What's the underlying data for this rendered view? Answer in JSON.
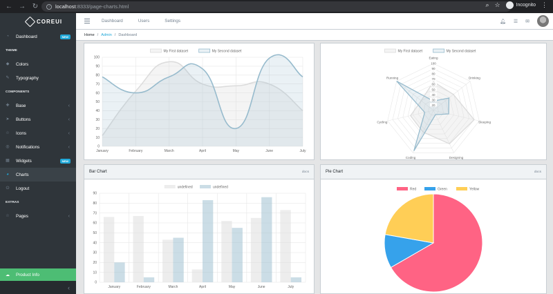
{
  "browser": {
    "url_host": "localhost",
    "url_path": ":8333/page-charts.html",
    "incognito_label": "Incognito"
  },
  "brand": {
    "name": "COREUI"
  },
  "sidebar": {
    "items": [
      {
        "label": "Dashboard",
        "icon": "speedometer-icon",
        "badge": "NEW"
      },
      {
        "section": "THEME"
      },
      {
        "label": "Colors",
        "icon": "drop-icon"
      },
      {
        "label": "Typography",
        "icon": "pencil-icon"
      },
      {
        "section": "COMPONENTS"
      },
      {
        "label": "Base",
        "icon": "puzzle-icon",
        "chevron": true
      },
      {
        "label": "Buttons",
        "icon": "cursor-icon",
        "chevron": true
      },
      {
        "label": "Icons",
        "icon": "star-icon",
        "chevron": true
      },
      {
        "label": "Notifications",
        "icon": "bell-icon",
        "chevron": true
      },
      {
        "label": "Widgets",
        "icon": "calculator-icon",
        "badge": "NEW"
      },
      {
        "label": "Charts",
        "icon": "pie-chart-icon",
        "active": true
      },
      {
        "label": "Logout",
        "icon": "logout-icon"
      },
      {
        "section": "EXTRAS"
      },
      {
        "label": "Pages",
        "icon": "star-icon",
        "chevron": true
      }
    ],
    "footer_label": "Product Info"
  },
  "header": {
    "links": [
      "Dashboard",
      "Users",
      "Settings"
    ]
  },
  "breadcrumb": {
    "home": "Home",
    "admin": "Admin",
    "current": "Dashboard"
  },
  "colors": {
    "grey_fill": "rgba(220,220,220,0.3)",
    "grey_line": "#dcdcdc",
    "blue_fill": "rgba(151,187,205,0.2)",
    "blue_line": "#97bbcd",
    "red": "#ff6384",
    "green": "#36a2eb",
    "yellow": "#ffce56",
    "bar_grey": "rgba(220,220,220,0.5)",
    "bar_blue": "rgba(151,187,205,0.5)"
  },
  "cards": {
    "bar_title": "Bar Chart",
    "pie_title": "Pie Chart",
    "docs": "docs"
  },
  "chart_data": [
    {
      "type": "line",
      "categories": [
        "January",
        "February",
        "March",
        "April",
        "May",
        "June",
        "July"
      ],
      "series": [
        {
          "name": "My First dataset",
          "values": [
            12,
            62,
            95,
            70,
            68,
            70,
            40
          ]
        },
        {
          "name": "My Second dataset",
          "values": [
            78,
            60,
            78,
            87,
            20,
            99,
            78
          ]
        }
      ],
      "ylim": [
        0,
        100
      ],
      "yticks": [
        0,
        10,
        20,
        30,
        40,
        50,
        60,
        70,
        80,
        90,
        100
      ],
      "legend": "top",
      "grid": true
    },
    {
      "type": "radar",
      "categories": [
        "Eating",
        "Drinking",
        "Sleeping",
        "Designing",
        "Coding",
        "Cycling",
        "Running"
      ],
      "series": [
        {
          "name": "My First dataset",
          "values": [
            65,
            59,
            90,
            81,
            56,
            55,
            40
          ]
        },
        {
          "name": "My Second dataset",
          "values": [
            28,
            48,
            40,
            19,
            96,
            27,
            100
          ]
        }
      ],
      "ticks": [
        20,
        30,
        40,
        50,
        60,
        70,
        80,
        90,
        100
      ],
      "legend": "top"
    },
    {
      "type": "bar",
      "title": "Bar Chart",
      "categories": [
        "January",
        "February",
        "March",
        "April",
        "May",
        "June",
        "July"
      ],
      "series": [
        {
          "name": "undefined",
          "values": [
            66,
            67,
            43,
            13,
            62,
            65,
            73
          ]
        },
        {
          "name": "undefined",
          "values": [
            20,
            5,
            45,
            83,
            55,
            86,
            5
          ]
        }
      ],
      "ylim": [
        0,
        90
      ],
      "yticks": [
        0,
        10,
        20,
        30,
        40,
        50,
        60,
        70,
        80,
        90
      ],
      "legend": "top",
      "grid": true
    },
    {
      "type": "pie",
      "title": "Pie Chart",
      "labels": [
        "Red",
        "Green",
        "Yellow"
      ],
      "values": [
        300,
        50,
        100
      ],
      "legend": "top"
    }
  ]
}
